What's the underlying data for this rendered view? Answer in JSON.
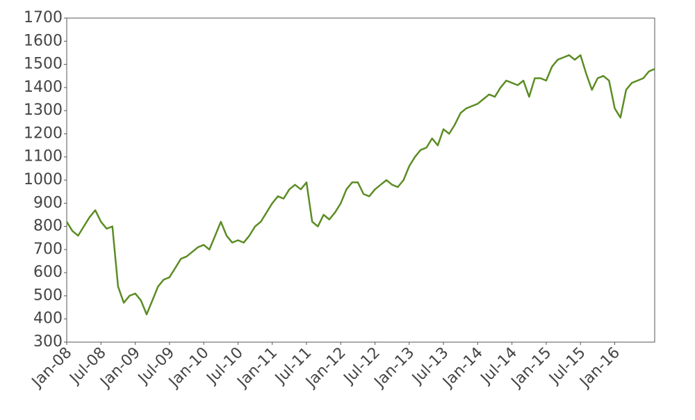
{
  "chart_data": {
    "type": "line",
    "color": "#5b8c23",
    "grid": false,
    "x": [
      "2008-01",
      "2008-02",
      "2008-03",
      "2008-04",
      "2008-05",
      "2008-06",
      "2008-07",
      "2008-08",
      "2008-09",
      "2008-10",
      "2008-11",
      "2008-12",
      "2009-01",
      "2009-02",
      "2009-03",
      "2009-04",
      "2009-05",
      "2009-06",
      "2009-07",
      "2009-08",
      "2009-09",
      "2009-10",
      "2009-11",
      "2009-12",
      "2010-01",
      "2010-02",
      "2010-03",
      "2010-04",
      "2010-05",
      "2010-06",
      "2010-07",
      "2010-08",
      "2010-09",
      "2010-10",
      "2010-11",
      "2010-12",
      "2011-01",
      "2011-02",
      "2011-03",
      "2011-04",
      "2011-05",
      "2011-06",
      "2011-07",
      "2011-08",
      "2011-09",
      "2011-10",
      "2011-11",
      "2011-12",
      "2012-01",
      "2012-02",
      "2012-03",
      "2012-04",
      "2012-05",
      "2012-06",
      "2012-07",
      "2012-08",
      "2012-09",
      "2012-10",
      "2012-11",
      "2012-12",
      "2013-01",
      "2013-02",
      "2013-03",
      "2013-04",
      "2013-05",
      "2013-06",
      "2013-07",
      "2013-08",
      "2013-09",
      "2013-10",
      "2013-11",
      "2013-12",
      "2014-01",
      "2014-02",
      "2014-03",
      "2014-04",
      "2014-05",
      "2014-06",
      "2014-07",
      "2014-08",
      "2014-09",
      "2014-10",
      "2014-11",
      "2014-12",
      "2015-01",
      "2015-02",
      "2015-03",
      "2015-04",
      "2015-05",
      "2015-06",
      "2015-07",
      "2015-08",
      "2015-09",
      "2015-10",
      "2015-11",
      "2015-12",
      "2016-01",
      "2016-02",
      "2016-03",
      "2016-04",
      "2016-05",
      "2016-06",
      "2016-07",
      "2016-08"
    ],
    "values": [
      820,
      780,
      760,
      800,
      840,
      870,
      820,
      790,
      800,
      540,
      470,
      500,
      510,
      480,
      420,
      480,
      540,
      570,
      580,
      620,
      660,
      670,
      690,
      710,
      720,
      700,
      760,
      820,
      760,
      730,
      740,
      730,
      760,
      800,
      820,
      860,
      900,
      930,
      920,
      960,
      980,
      960,
      990,
      820,
      800,
      850,
      830,
      860,
      900,
      960,
      990,
      990,
      940,
      930,
      960,
      980,
      1000,
      980,
      970,
      1000,
      1060,
      1100,
      1130,
      1140,
      1180,
      1150,
      1220,
      1200,
      1240,
      1290,
      1310,
      1320,
      1330,
      1350,
      1370,
      1360,
      1400,
      1430,
      1420,
      1410,
      1430,
      1360,
      1440,
      1440,
      1430,
      1490,
      1520,
      1530,
      1540,
      1520,
      1540,
      1460,
      1390,
      1440,
      1450,
      1430,
      1310,
      1270,
      1390,
      1420,
      1430,
      1440,
      1470,
      1480
    ],
    "xlim": [
      "2008-01",
      "2016-08"
    ],
    "xticks": [
      {
        "value": "2008-01",
        "label": "Jan-08"
      },
      {
        "value": "2008-07",
        "label": "Jul-08"
      },
      {
        "value": "2009-01",
        "label": "Jan-09"
      },
      {
        "value": "2009-07",
        "label": "Jul-09"
      },
      {
        "value": "2010-01",
        "label": "Jan-10"
      },
      {
        "value": "2010-07",
        "label": "Jul-10"
      },
      {
        "value": "2011-01",
        "label": "Jan-11"
      },
      {
        "value": "2011-07",
        "label": "Jul-11"
      },
      {
        "value": "2012-01",
        "label": "Jan-12"
      },
      {
        "value": "2012-07",
        "label": "Jul-12"
      },
      {
        "value": "2013-01",
        "label": "Jan-13"
      },
      {
        "value": "2013-07",
        "label": "Jul-13"
      },
      {
        "value": "2014-01",
        "label": "Jan-14"
      },
      {
        "value": "2014-07",
        "label": "Jul-14"
      },
      {
        "value": "2015-01",
        "label": "Jan-15"
      },
      {
        "value": "2015-07",
        "label": "Jul-15"
      },
      {
        "value": "2016-01",
        "label": "Jan-16"
      }
    ],
    "ylim": [
      300,
      1700
    ],
    "yticks": [
      300,
      400,
      500,
      600,
      700,
      800,
      900,
      1000,
      1100,
      1200,
      1300,
      1400,
      1500,
      1600,
      1700
    ]
  }
}
